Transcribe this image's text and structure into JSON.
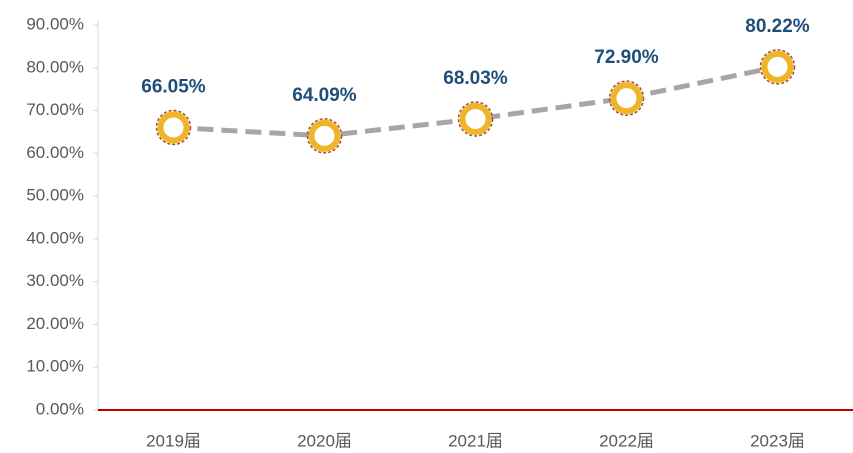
{
  "chart_data": {
    "type": "line",
    "categories": [
      "2019届",
      "2020届",
      "2021届",
      "2022届",
      "2023届"
    ],
    "series": [
      {
        "color": "#a6a6a6",
        "values": [
          66.05,
          64.09,
          68.03,
          72.9,
          80.22
        ],
        "value_labels": [
          "66.05%",
          "64.09%",
          "68.03%",
          "72.90%",
          "80.22%"
        ]
      }
    ],
    "ylim": [
      0,
      90
    ],
    "yticks": [
      {
        "value": 0,
        "label": "0.00%"
      },
      {
        "value": 10,
        "label": "10.00%"
      },
      {
        "value": 20,
        "label": "20.00%"
      },
      {
        "value": 30,
        "label": "30.00%"
      },
      {
        "value": 40,
        "label": "40.00%"
      },
      {
        "value": 50,
        "label": "50.00%"
      },
      {
        "value": 60,
        "label": "60.00%"
      },
      {
        "value": 70,
        "label": "70.00%"
      },
      {
        "value": 80,
        "label": "80.00%"
      },
      {
        "value": 90,
        "label": "90.00%"
      }
    ]
  }
}
